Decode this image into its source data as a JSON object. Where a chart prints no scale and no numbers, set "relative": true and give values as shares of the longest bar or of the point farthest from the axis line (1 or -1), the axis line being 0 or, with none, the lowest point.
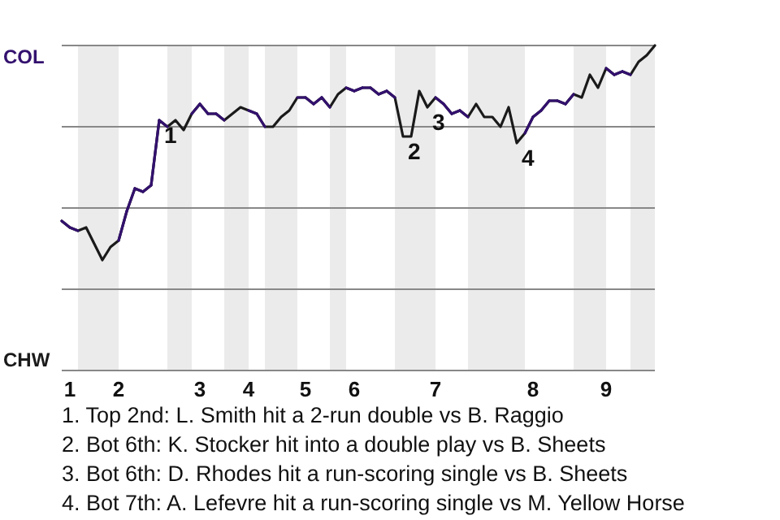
{
  "chart_data": {
    "type": "line",
    "relative": true,
    "categories": [
      null,
      "1",
      null,
      null,
      null,
      null,
      null,
      "2",
      null,
      null,
      null,
      null,
      null,
      null,
      null,
      null,
      null,
      "3",
      null,
      null,
      null,
      null,
      null,
      "4",
      null,
      null,
      null,
      null,
      null,
      null,
      "5",
      null,
      null,
      null,
      null,
      null,
      "6",
      null,
      null,
      null,
      null,
      null,
      null,
      null,
      null,
      null,
      "7",
      null,
      null,
      null,
      null,
      null,
      null,
      null,
      null,
      null,
      null,
      null,
      "8",
      null,
      null,
      null,
      null,
      null,
      null,
      null,
      null,
      "9",
      null,
      null,
      null,
      null,
      null,
      null
    ],
    "marker": "none",
    "line_style": "solid",
    "ref_lines": [
      {
        "axis": "y",
        "value": 0.25,
        "color": "#888888"
      },
      {
        "axis": "y",
        "value": 0.5,
        "color": "#888888"
      },
      {
        "axis": "y",
        "value": 0.75,
        "color": "#888888"
      },
      {
        "axis": "y",
        "value": 1,
        "color": "#888888"
      }
    ],
    "series": [
      {
        "color": "#1a1a1a",
        "values": [
          0.46,
          0.44,
          0.43,
          0.44,
          0.39,
          0.34,
          0.38,
          0.4,
          0.49,
          0.56,
          0.55,
          0.57,
          0.77,
          0.75,
          0.77,
          0.74,
          0.79,
          0.82,
          0.79,
          0.79,
          0.77,
          0.79,
          0.81,
          0.8,
          0.79,
          0.75,
          0.75,
          0.78,
          0.8,
          0.84,
          0.84,
          0.82,
          0.84,
          0.81,
          0.85,
          0.87,
          0.86,
          0.87,
          0.87,
          0.85,
          0.86,
          0.84,
          0.72,
          0.72,
          0.86,
          0.81,
          0.84,
          0.82,
          0.79,
          0.8,
          0.78,
          0.82,
          0.78,
          0.78,
          0.75,
          0.81,
          0.7,
          0.73,
          0.78,
          0.8,
          0.83,
          0.83,
          0.82,
          0.85,
          0.84,
          0.91,
          0.87,
          0.93,
          0.91,
          0.92,
          0.91,
          0.95,
          0.97,
          1.0
        ],
        "colors": [
          "#33116e",
          "#33116e",
          "#1a1a1a",
          "#1a1a1a",
          "#1a1a1a",
          "#1a1a1a",
          "#1a1a1a",
          "#33116e",
          "#33116e",
          "#33116e",
          "#33116e",
          "#33116e",
          "#33116e",
          "#1a1a1a",
          "#1a1a1a",
          "#1a1a1a",
          "#33116e",
          "#33116e",
          "#33116e",
          "#33116e",
          "#1a1a1a",
          "#1a1a1a",
          "#1a1a1a",
          "#33116e",
          "#33116e",
          "#1a1a1a",
          "#1a1a1a",
          "#1a1a1a",
          "#1a1a1a",
          "#33116e",
          "#33116e",
          "#33116e",
          "#33116e",
          "#1a1a1a",
          "#1a1a1a",
          "#33116e",
          "#33116e",
          "#33116e",
          "#33116e",
          "#33116e",
          "#33116e",
          "#1a1a1a",
          "#1a1a1a",
          "#1a1a1a",
          "#1a1a1a",
          "#1a1a1a",
          "#33116e",
          "#33116e",
          "#33116e",
          "#33116e",
          "#1a1a1a",
          "#1a1a1a",
          "#1a1a1a",
          "#1a1a1a",
          "#1a1a1a",
          "#1a1a1a",
          "#1a1a1a",
          "#33116e",
          "#33116e",
          "#33116e",
          "#33116e",
          "#33116e",
          "#33116e",
          "#1a1a1a",
          "#1a1a1a",
          "#1a1a1a",
          "#1a1a1a",
          "#33116e",
          "#33116e",
          "#33116e",
          "#1a1a1a",
          "#1a1a1a",
          "#1a1a1a",
          "#1a1a1a"
        ]
      }
    ],
    "annotations": [
      {
        "text": "1",
        "y": 0.77
      },
      {
        "text": "2",
        "y": 0.72
      },
      {
        "text": "3",
        "y": 0.81
      },
      {
        "text": "4",
        "y": 0.7
      },
      "COL",
      "CHW",
      "1. Top 2nd: L. Smith hit a 2-run double vs B. Raggio",
      "2. Bot 6th: K. Stocker hit into a double play vs B. Sheets",
      "3. Bot 6th: D. Rhodes hit a run-scoring single vs B. Sheets",
      "4. Bot 7th: A. Lefevre hit a run-scoring single vs M. Yellow Horse"
    ]
  }
}
